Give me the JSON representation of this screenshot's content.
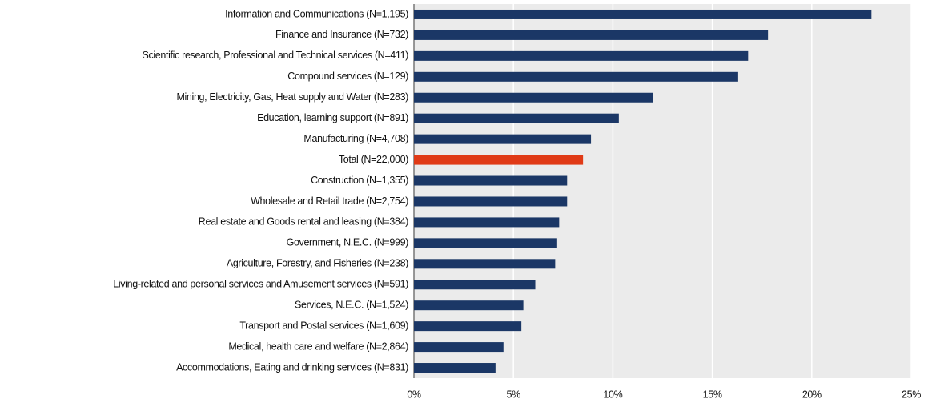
{
  "chart_data": {
    "type": "barh",
    "categories": [
      "Information and Communications (N=1,195)",
      "Finance and Insurance (N=732)",
      "Scientific research, Professional and Technical services (N=411)",
      "Compound services (N=129)",
      "Mining, Electricity, Gas, Heat supply and Water (N=283)",
      "Education, learning support (N=891)",
      "Manufacturing (N=4,708)",
      "Total (N=22,000)",
      "Construction (N=1,355)",
      "Wholesale and Retail trade (N=2,754)",
      "Real estate and Goods rental and leasing (N=384)",
      "Government, N.E.C. (N=999)",
      "Agriculture, Forestry, and Fisheries (N=238)",
      "Living-related and personal services and Amusement services (N=591)",
      "Services, N.E.C. (N=1,524)",
      "Transport and Postal services (N=1,609)",
      "Medical, health care and welfare (N=2,864)",
      "Accommodations, Eating and drinking services (N=831)"
    ],
    "values": [
      23.0,
      17.8,
      16.8,
      16.3,
      12.0,
      10.3,
      8.9,
      8.5,
      7.7,
      7.7,
      7.3,
      7.2,
      7.1,
      6.1,
      5.5,
      5.4,
      4.5,
      4.1
    ],
    "colors": [
      "#1b3766",
      "#1b3766",
      "#1b3766",
      "#1b3766",
      "#1b3766",
      "#1b3766",
      "#1b3766",
      "#e03a16",
      "#1b3766",
      "#1b3766",
      "#1b3766",
      "#1b3766",
      "#1b3766",
      "#1b3766",
      "#1b3766",
      "#1b3766",
      "#1b3766",
      "#1b3766"
    ],
    "xlim": [
      0,
      25
    ],
    "xticks": [
      {
        "value": 0,
        "label": "0%"
      },
      {
        "value": 5,
        "label": "5%"
      },
      {
        "value": 10,
        "label": "10%"
      },
      {
        "value": 15,
        "label": "15%"
      },
      {
        "value": 20,
        "label": "20%"
      },
      {
        "value": 25,
        "label": "25%"
      }
    ],
    "grid": true
  }
}
